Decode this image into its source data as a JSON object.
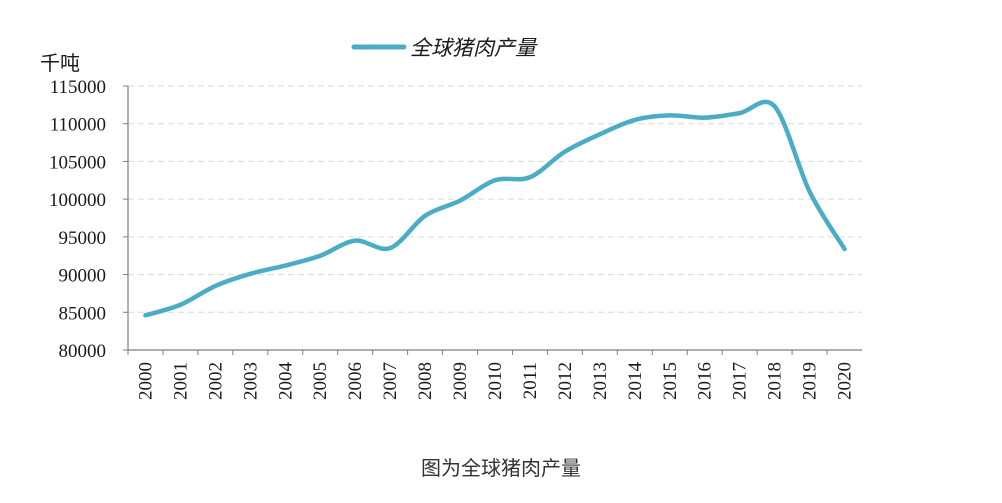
{
  "chart_data": {
    "type": "line",
    "ylabel": "千吨",
    "x": [
      "2000",
      "2001",
      "2002",
      "2003",
      "2004",
      "2005",
      "2006",
      "2007",
      "2008",
      "2009",
      "2010",
      "2011",
      "2012",
      "2013",
      "2014",
      "2015",
      "2016",
      "2017",
      "2018",
      "2019",
      "2020"
    ],
    "series": [
      {
        "name": "全球猪肉产量",
        "color": "#4bacc6",
        "values": [
          84600,
          86000,
          88500,
          90100,
          91200,
          92500,
          94500,
          93500,
          97800,
          99800,
          102500,
          102900,
          106300,
          108600,
          110500,
          111100,
          110800,
          111400,
          112300,
          101000,
          93400
        ]
      }
    ],
    "ylim": [
      80000,
      115000
    ],
    "yticks": [
      80000,
      85000,
      90000,
      95000,
      100000,
      105000,
      110000,
      115000
    ],
    "grid": "horizontal-dashed",
    "legend_position": "top"
  },
  "caption": "图为全球猪肉产量"
}
